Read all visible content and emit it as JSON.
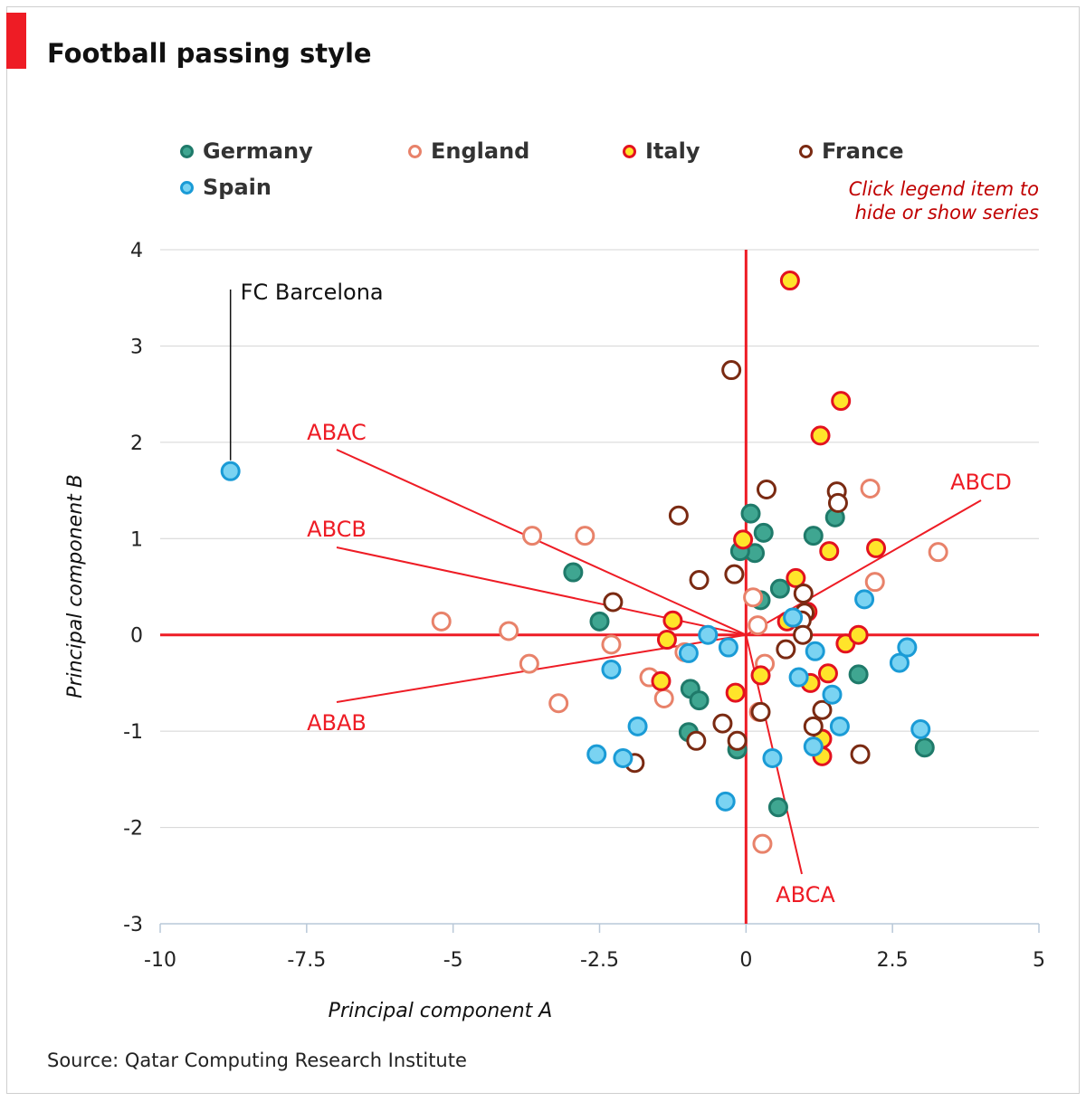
{
  "title": "Football passing style",
  "source": "Source: Qatar Computing Research Institute",
  "hint_line1": "Click legend item to",
  "hint_line2": "hide or show series",
  "colors": {
    "accent": "#ee1c25",
    "hint": "#c00000",
    "grid": "#d4d4d4"
  },
  "legend": [
    {
      "name": "Germany",
      "fill": "#3fa691",
      "stroke": "#1f7a6a"
    },
    {
      "name": "England",
      "fill": "#ffffff",
      "stroke": "#e8826a"
    },
    {
      "name": "Italy",
      "fill": "#ffe42a",
      "stroke": "#e3121f"
    },
    {
      "name": "France",
      "fill": "#ffffff",
      "stroke": "#7a2a12"
    },
    {
      "name": "Spain",
      "fill": "#7ad3f2",
      "stroke": "#1a9bd6"
    }
  ],
  "chart_data": {
    "type": "scatter",
    "xlabel": "Principal component A",
    "ylabel": "Principal component B",
    "xlim": [
      -10,
      5
    ],
    "ylim": [
      -3,
      4
    ],
    "xticks": [
      -10,
      -7.5,
      -5,
      -2.5,
      0,
      2.5,
      5
    ],
    "xtick_labels": [
      "-10",
      "-7.5",
      "-5",
      "-2.5",
      "0",
      "2.5",
      "5"
    ],
    "yticks": [
      -3,
      -2,
      -1,
      0,
      1,
      2,
      3,
      4
    ],
    "ytick_labels": [
      "-3",
      "-2",
      "-1",
      "0",
      "1",
      "2",
      "3",
      "4"
    ],
    "grid": "horizontal",
    "series": [
      {
        "name": "Germany",
        "points": [
          [
            0.08,
            1.26
          ],
          [
            0.3,
            1.06
          ],
          [
            0.15,
            0.85
          ],
          [
            -0.1,
            0.87
          ],
          [
            1.15,
            1.03
          ],
          [
            1.52,
            1.22
          ],
          [
            -2.95,
            0.65
          ],
          [
            -2.5,
            0.14
          ],
          [
            0.58,
            0.48
          ],
          [
            0.25,
            0.36
          ],
          [
            1.92,
            -0.41
          ],
          [
            -0.95,
            -0.56
          ],
          [
            -0.8,
            -0.68
          ],
          [
            -0.98,
            -1.01
          ],
          [
            -0.15,
            -1.19
          ],
          [
            0.55,
            -1.79
          ],
          [
            3.05,
            -1.17
          ]
        ]
      },
      {
        "name": "England",
        "points": [
          [
            -3.65,
            1.03
          ],
          [
            -2.75,
            1.03
          ],
          [
            2.12,
            1.52
          ],
          [
            3.28,
            0.86
          ],
          [
            2.2,
            0.55
          ],
          [
            0.12,
            0.39
          ],
          [
            0.2,
            0.1
          ],
          [
            -5.2,
            0.14
          ],
          [
            -4.05,
            0.04
          ],
          [
            -2.3,
            -0.1
          ],
          [
            -3.7,
            -0.3
          ],
          [
            -1.65,
            -0.44
          ],
          [
            -1.4,
            -0.66
          ],
          [
            -3.2,
            -0.71
          ],
          [
            -1.05,
            -0.18
          ],
          [
            0.32,
            -0.3
          ],
          [
            0.22,
            -0.8
          ],
          [
            0.28,
            -2.17
          ]
        ]
      },
      {
        "name": "Italy",
        "points": [
          [
            0.75,
            3.68
          ],
          [
            1.62,
            2.43
          ],
          [
            1.27,
            2.07
          ],
          [
            -0.05,
            0.99
          ],
          [
            0.85,
            0.59
          ],
          [
            1.42,
            0.87
          ],
          [
            2.22,
            0.9
          ],
          [
            1.05,
            0.24
          ],
          [
            0.7,
            0.14
          ],
          [
            -1.25,
            0.15
          ],
          [
            -1.35,
            -0.05
          ],
          [
            1.7,
            -0.09
          ],
          [
            1.92,
            0.0
          ],
          [
            -1.45,
            -0.48
          ],
          [
            0.25,
            -0.42
          ],
          [
            -0.18,
            -0.6
          ],
          [
            1.4,
            -0.4
          ],
          [
            1.1,
            -0.5
          ],
          [
            1.3,
            -1.08
          ],
          [
            1.3,
            -1.26
          ]
        ]
      },
      {
        "name": "France",
        "points": [
          [
            -0.25,
            2.75
          ],
          [
            0.35,
            1.51
          ],
          [
            1.55,
            1.49
          ],
          [
            1.57,
            1.37
          ],
          [
            -1.15,
            1.24
          ],
          [
            -0.2,
            0.63
          ],
          [
            -0.8,
            0.57
          ],
          [
            -2.27,
            0.34
          ],
          [
            0.98,
            0.43
          ],
          [
            1.0,
            0.23
          ],
          [
            0.95,
            0.15
          ],
          [
            0.97,
            0.0
          ],
          [
            0.68,
            -0.15
          ],
          [
            1.3,
            -0.78
          ],
          [
            1.15,
            -0.95
          ],
          [
            -0.4,
            -0.92
          ],
          [
            0.25,
            -0.8
          ],
          [
            -0.85,
            -1.1
          ],
          [
            -0.15,
            -1.1
          ],
          [
            1.95,
            -1.24
          ],
          [
            -1.9,
            -1.33
          ]
        ]
      },
      {
        "name": "Spain",
        "points": [
          [
            -8.8,
            1.7
          ],
          [
            2.02,
            0.37
          ],
          [
            0.8,
            0.18
          ],
          [
            -0.65,
            0.0
          ],
          [
            -0.3,
            -0.13
          ],
          [
            -0.98,
            -0.19
          ],
          [
            1.18,
            -0.17
          ],
          [
            2.75,
            -0.13
          ],
          [
            2.62,
            -0.29
          ],
          [
            -2.3,
            -0.36
          ],
          [
            0.9,
            -0.44
          ],
          [
            1.47,
            -0.62
          ],
          [
            -1.85,
            -0.95
          ],
          [
            1.6,
            -0.95
          ],
          [
            2.98,
            -0.98
          ],
          [
            1.15,
            -1.16
          ],
          [
            -2.55,
            -1.24
          ],
          [
            -2.1,
            -1.28
          ],
          [
            0.45,
            -1.28
          ],
          [
            -0.35,
            -1.73
          ]
        ]
      }
    ],
    "annotations": [
      {
        "text": "FC Barcelona",
        "point": [
          -8.8,
          1.7
        ],
        "color": "#111111"
      },
      {
        "text": "ABAC",
        "color": "#ee1c25"
      },
      {
        "text": "ABCB",
        "color": "#ee1c25"
      },
      {
        "text": "ABAB",
        "color": "#ee1c25"
      },
      {
        "text": "ABCA",
        "color": "#ee1c25"
      },
      {
        "text": "ABCD",
        "color": "#ee1c25"
      }
    ]
  }
}
